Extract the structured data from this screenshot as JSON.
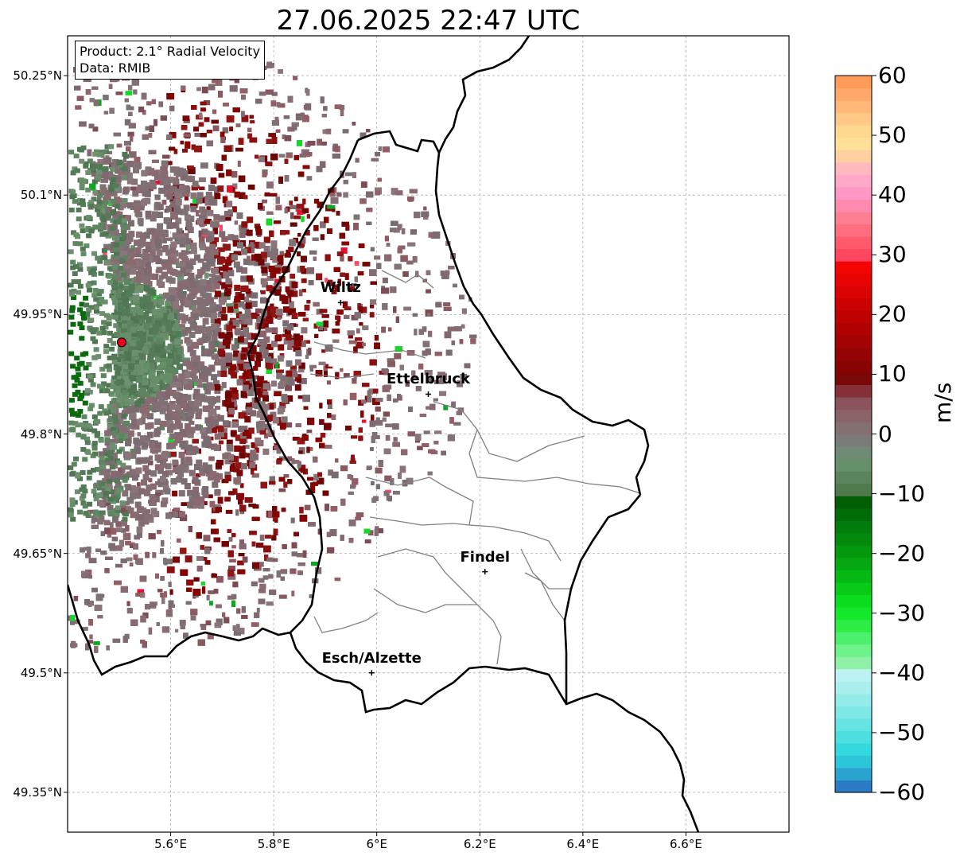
{
  "title": "27.06.2025 22:47 UTC",
  "info": {
    "product": "Product: 2.1° Radial Velocity",
    "data_source": "Data: RMIB"
  },
  "map": {
    "lon_range": [
      5.4,
      6.8
    ],
    "lat_range": [
      49.3,
      50.3
    ],
    "lat_ticks": [
      {
        "value": 50.25,
        "label": "50.25°N"
      },
      {
        "value": 50.1,
        "label": "50.1°N"
      },
      {
        "value": 49.95,
        "label": "49.95°N"
      },
      {
        "value": 49.8,
        "label": "49.8°N"
      },
      {
        "value": 49.65,
        "label": "49.65°N"
      },
      {
        "value": 49.5,
        "label": "49.5°N"
      },
      {
        "value": 49.35,
        "label": "49.35°N"
      }
    ],
    "lon_ticks": [
      {
        "value": 5.6,
        "label": "5.6°E"
      },
      {
        "value": 5.8,
        "label": "5.8°E"
      },
      {
        "value": 6.0,
        "label": "6°E"
      },
      {
        "value": 6.2,
        "label": "6.2°E"
      },
      {
        "value": 6.4,
        "label": "6.4°E"
      },
      {
        "value": 6.6,
        "label": "6.6°E"
      }
    ],
    "gridlines": true,
    "radar_site": {
      "lon": 5.505,
      "lat": 49.915,
      "color": "#e8001c"
    },
    "cities": [
      {
        "name": "Wiltz",
        "lon": 5.93,
        "lat": 49.965
      },
      {
        "name": "Ettelbruck",
        "lon": 6.1,
        "lat": 49.85
      },
      {
        "name": "Findel",
        "lon": 6.21,
        "lat": 49.627
      },
      {
        "name": "Esch/Alzette",
        "lon": 5.99,
        "lat": 49.5
      }
    ]
  },
  "colorbar": {
    "unit": "m/s",
    "min": -60,
    "max": 60,
    "tick_values": [
      60,
      50,
      40,
      30,
      20,
      10,
      0,
      -10,
      -20,
      -30,
      -40,
      -50,
      -60
    ],
    "tick_labels": [
      "60",
      "50",
      "40",
      "30",
      "20",
      "10",
      "0",
      "−10",
      "−20",
      "−30",
      "−40",
      "−50",
      "−60"
    ],
    "colors": [
      "#2b7cc4",
      "#2aa3cf",
      "#2cc5d9",
      "#33d9de",
      "#4ddfe0",
      "#66e4e4",
      "#7de8e6",
      "#93ecea",
      "#a8efee",
      "#bcf2f2",
      "#8ff0a8",
      "#6ef28a",
      "#4cf06c",
      "#2ded45",
      "#14e82c",
      "#0adc1e",
      "#08cb18",
      "#06b814",
      "#05a812",
      "#04980f",
      "#038a0c",
      "#027c0a",
      "#016c07",
      "#005e05",
      "#4e7a4e",
      "#5a855a",
      "#66906a",
      "#6f8a75",
      "#7a7a78",
      "#847070",
      "#8a6268",
      "#8a525a",
      "#852f38",
      "#7a0808",
      "#880404",
      "#950404",
      "#a30303",
      "#b00202",
      "#be0202",
      "#cc0101",
      "#da0202",
      "#e80202",
      "#f50404",
      "#ff4660",
      "#ff5a6c",
      "#ff6e7e",
      "#ff7f92",
      "#ff8ab0",
      "#ff98c4",
      "#ffa8c8",
      "#ffb8c0",
      "#ffd0a0",
      "#ffe098",
      "#ffd890",
      "#ffc888",
      "#ffb878",
      "#ffa868",
      "#ff9a58"
    ]
  }
}
